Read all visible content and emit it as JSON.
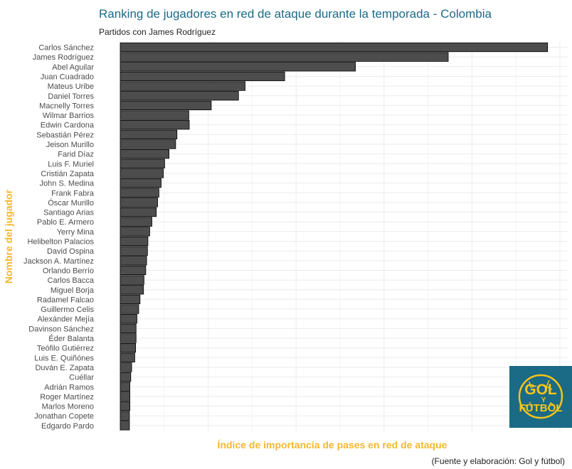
{
  "chart_data": {
    "type": "bar",
    "orientation": "horizontal",
    "title": "Ranking de jugadores en red de ataque durante la temporada - Colombia",
    "subtitle": "Partidos con James Rodríguez",
    "xlabel": "Índice de importancia de pases en red de ataque",
    "ylabel": "Nombre del jugador",
    "caption": "(Fuente y elaboración: Gol y fútbol)",
    "grid": true,
    "xlim": [
      0,
      100
    ],
    "x_tick_labels_visible": false,
    "bar_color": "#4d4d4d",
    "categories": [
      "Carlos Sánchez",
      "James Rodríguez",
      "Abel Aguilar",
      "Juan Cuadrado",
      "Mateus Uribe",
      "Daniel Torres",
      "Macnelly Torres",
      "Wilmar Barrios",
      "Edwin Cardona",
      "Sebastián Pérez",
      "Jeison Murillo",
      "Farid Díaz",
      "Luis F. Muriel",
      "Cristián Zapata",
      "John S. Medina",
      "Frank Fabra",
      "Óscar  Murillo",
      "Santiago Arias",
      "Pablo E. Armero",
      "Yerry Mina",
      "Helibelton Palacios",
      "David Ospina",
      "Jackson A. Martínez",
      "Orlando Berrío",
      "Carlos Bacca",
      "Miguel Borja",
      "Radamel Falcao",
      "Guillermo Celis",
      "Alexánder Mejía",
      "Davinson Sánchez",
      "Éder Balanta",
      "Teófilo Gutiérrez",
      "Luis E. Quiñónes",
      "Duván E. Zapata",
      "Cuéllar",
      "Adrián Ramos",
      "Roger Martínez",
      "Marlos Moreno",
      "Jonathan Copete",
      "Edgardo Pardo"
    ],
    "values": [
      97.2,
      74.6,
      53.5,
      37.4,
      28.4,
      26.9,
      20.7,
      15.6,
      15.7,
      12.9,
      12.6,
      11.1,
      10.1,
      9.8,
      9.3,
      8.8,
      8.5,
      8.2,
      7.2,
      6.7,
      6.3,
      6.2,
      6.0,
      5.8,
      5.4,
      5.3,
      4.5,
      4.2,
      3.8,
      3.6,
      3.6,
      3.5,
      3.3,
      2.6,
      2.4,
      2.2,
      2.2,
      2.2,
      2.1,
      2.1
    ]
  },
  "logo": {
    "text_top": "GOL",
    "text_mid": "Y",
    "text_bottom": "FÚTBOL",
    "background": "#1b6a86",
    "color": "#f5c518"
  },
  "colors": {
    "title": "#1b6a86",
    "axis_label": "#f5b82e",
    "grid": "#ebebeb",
    "tick_text": "#4d4d4d"
  }
}
